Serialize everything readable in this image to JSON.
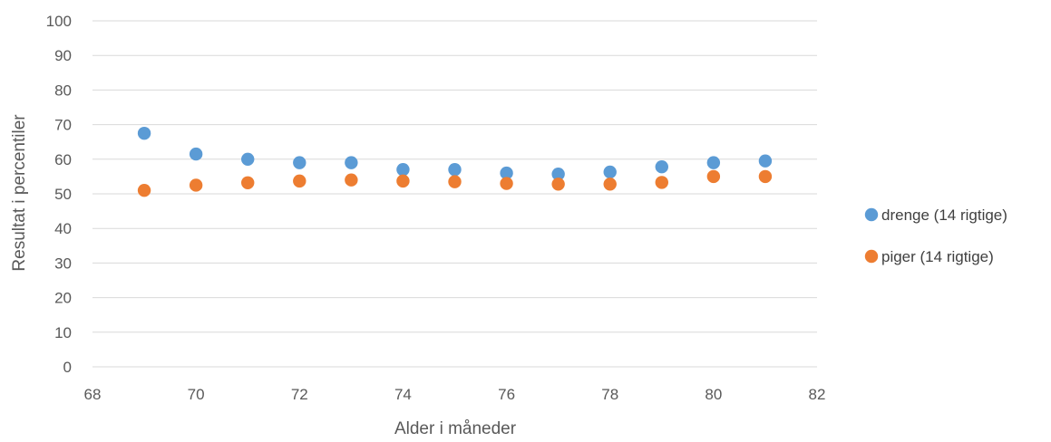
{
  "chart_data": {
    "type": "scatter",
    "title": "",
    "xlabel": "Alder i måneder",
    "ylabel": "Resultat i percentiler",
    "xlim": [
      68,
      82
    ],
    "ylim": [
      0,
      100
    ],
    "x_ticks": [
      "68",
      "70",
      "72",
      "74",
      "76",
      "78",
      "80",
      "82"
    ],
    "y_ticks": [
      "0",
      "10",
      "20",
      "30",
      "40",
      "50",
      "60",
      "70",
      "80",
      "90",
      "100"
    ],
    "grid": true,
    "legend_position": "right",
    "series": [
      {
        "name": "drenge (14 rigtige)",
        "color": "#5B9BD5",
        "points": [
          {
            "x": 69,
            "y": 67.5
          },
          {
            "x": 70,
            "y": 61.5
          },
          {
            "x": 71,
            "y": 60
          },
          {
            "x": 72,
            "y": 59
          },
          {
            "x": 73,
            "y": 59
          },
          {
            "x": 74,
            "y": 57
          },
          {
            "x": 75,
            "y": 57
          },
          {
            "x": 76,
            "y": 56
          },
          {
            "x": 77,
            "y": 55.7
          },
          {
            "x": 78,
            "y": 56.3
          },
          {
            "x": 79,
            "y": 57.8
          },
          {
            "x": 80,
            "y": 59
          },
          {
            "x": 81,
            "y": 59.5
          }
        ]
      },
      {
        "name": "piger (14 rigtige)",
        "color": "#ED7D31",
        "points": [
          {
            "x": 69,
            "y": 51
          },
          {
            "x": 70,
            "y": 52.5
          },
          {
            "x": 71,
            "y": 53.2
          },
          {
            "x": 72,
            "y": 53.7
          },
          {
            "x": 73,
            "y": 54
          },
          {
            "x": 74,
            "y": 53.7
          },
          {
            "x": 75,
            "y": 53.5
          },
          {
            "x": 76,
            "y": 53
          },
          {
            "x": 77,
            "y": 52.8
          },
          {
            "x": 78,
            "y": 52.8
          },
          {
            "x": 79,
            "y": 53.3
          },
          {
            "x": 80,
            "y": 55
          },
          {
            "x": 81,
            "y": 55
          }
        ]
      }
    ]
  },
  "colors": {
    "gridline": "#D9D9D9",
    "axis_text": "#595959"
  }
}
